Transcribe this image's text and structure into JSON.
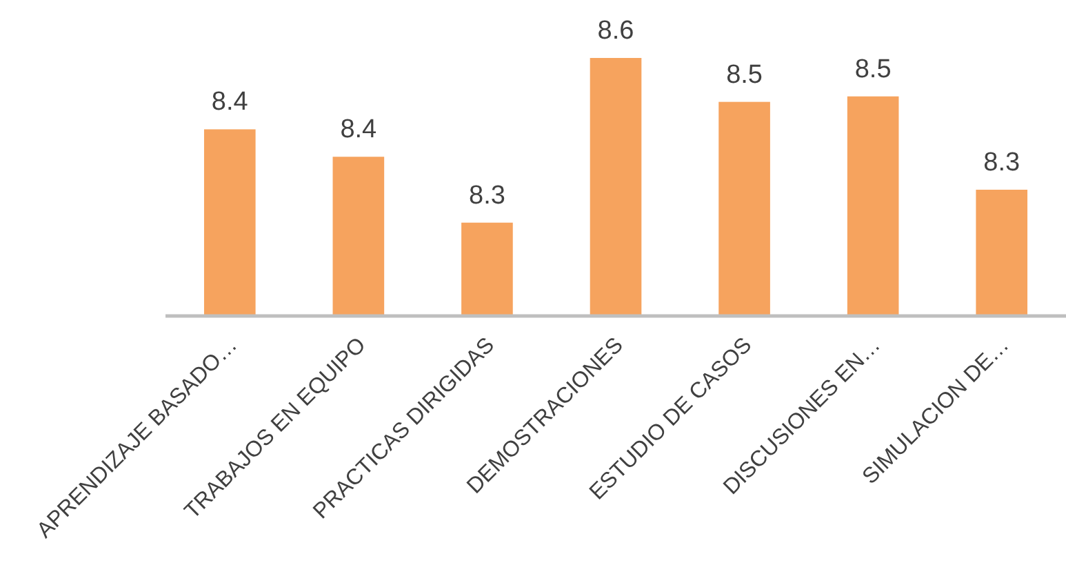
{
  "chart_data": {
    "type": "bar",
    "categories": [
      "APRENDIZAJE BASADO…",
      "TRABAJOS EN EQUIPO",
      "PRACTICAS DIRIGIDAS",
      "DEMOSTRACIONES",
      "ESTUDIO DE CASOS",
      "DISCUSIONES EN…",
      "SIMULACION DE…"
    ],
    "values": [
      8.44,
      8.39,
      8.27,
      8.57,
      8.49,
      8.5,
      8.33
    ],
    "value_labels": [
      "8.4",
      "8.4",
      "8.3",
      "8.6",
      "8.5",
      "8.5",
      "8.3"
    ],
    "ylim": [
      8.1,
      8.57
    ],
    "color": "#f6a35e"
  }
}
